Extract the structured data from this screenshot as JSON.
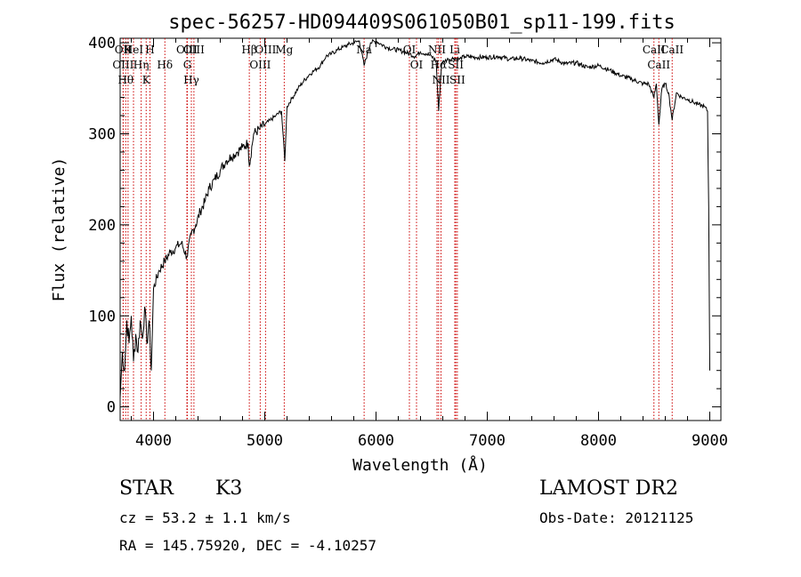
{
  "chart_data": {
    "type": "line",
    "title": "spec-56257-HD094409S061050B01_sp11-199.fits",
    "xlabel": "Wavelength (Å)",
    "ylabel": "Flux (relative)",
    "xlim": [
      3700,
      9100
    ],
    "ylim": [
      -15,
      405
    ],
    "x_ticks": [
      4000,
      5000,
      6000,
      7000,
      8000,
      9000
    ],
    "y_ticks": [
      0,
      100,
      200,
      300,
      400
    ],
    "grid": false,
    "series": [
      {
        "color": "#000000",
        "x": [
          3700,
          3720,
          3740,
          3760,
          3780,
          3800,
          3820,
          3840,
          3860,
          3880,
          3900,
          3920,
          3940,
          3960,
          3980,
          4000,
          4050,
          4100,
          4150,
          4200,
          4250,
          4300,
          4340,
          4380,
          4420,
          4460,
          4500,
          4550,
          4600,
          4650,
          4700,
          4750,
          4800,
          4850,
          4861,
          4900,
          4950,
          5000,
          5050,
          5100,
          5150,
          5180,
          5200,
          5250,
          5300,
          5350,
          5400,
          5450,
          5500,
          5550,
          5600,
          5650,
          5700,
          5750,
          5800,
          5850,
          5893,
          5950,
          6000,
          6050,
          6100,
          6150,
          6200,
          6250,
          6300,
          6350,
          6400,
          6450,
          6500,
          6540,
          6563,
          6590,
          6620,
          6650,
          6700,
          6750,
          6800,
          6900,
          7000,
          7100,
          7200,
          7300,
          7400,
          7500,
          7600,
          7700,
          7800,
          7900,
          8000,
          8100,
          8200,
          8300,
          8400,
          8450,
          8498,
          8520,
          8542,
          8570,
          8600,
          8630,
          8662,
          8700,
          8750,
          8800,
          8850,
          8900,
          8950,
          8980,
          8990,
          9000
        ],
        "y": [
          10,
          60,
          40,
          95,
          70,
          100,
          50,
          80,
          60,
          95,
          75,
          110,
          70,
          95,
          40,
          130,
          150,
          160,
          170,
          175,
          180,
          165,
          190,
          200,
          215,
          225,
          240,
          250,
          260,
          270,
          275,
          280,
          285,
          290,
          265,
          300,
          305,
          310,
          315,
          320,
          325,
          270,
          330,
          340,
          350,
          358,
          365,
          370,
          375,
          385,
          388,
          392,
          395,
          398,
          400,
          402,
          375,
          400,
          402,
          398,
          395,
          393,
          392,
          390,
          388,
          385,
          390,
          388,
          385,
          380,
          325,
          378,
          380,
          382,
          383,
          382,
          385,
          384,
          384,
          385,
          382,
          383,
          380,
          378,
          382,
          377,
          378,
          373,
          375,
          370,
          364,
          360,
          355,
          355,
          340,
          355,
          310,
          350,
          355,
          345,
          315,
          345,
          340,
          338,
          335,
          332,
          330,
          325,
          220,
          40
        ]
      }
    ],
    "line_annotations": [
      {
        "wavelength": 3750,
        "label": "Hθ"
      },
      {
        "wavelength": 3771,
        "label": "K"
      },
      {
        "wavelength": 3727,
        "label": "OII"
      },
      {
        "wavelength": 3820,
        "label": "HeI"
      },
      {
        "wavelength": 3727,
        "label": "OIII"
      },
      {
        "wavelength": 3889,
        "label": "Hη"
      },
      {
        "wavelength": 3934,
        "label": "K"
      },
      {
        "wavelength": 3968,
        "label": "H"
      },
      {
        "wavelength": 4102,
        "label": "Hδ"
      },
      {
        "wavelength": 4304,
        "label": "G"
      },
      {
        "wavelength": 4300,
        "label": "OIII"
      },
      {
        "wavelength": 4340,
        "label": "Hγ"
      },
      {
        "wavelength": 4363,
        "label": "OIII"
      },
      {
        "wavelength": 4861,
        "label": "Hβ"
      },
      {
        "wavelength": 4959,
        "label": "OIII"
      },
      {
        "wavelength": 5007,
        "label": "OIII"
      },
      {
        "wavelength": 5175,
        "label": "Mg"
      },
      {
        "wavelength": 5893,
        "label": "Na"
      },
      {
        "wavelength": 6300,
        "label": "OI"
      },
      {
        "wavelength": 6364,
        "label": "OI"
      },
      {
        "wavelength": 6548,
        "label": "NII"
      },
      {
        "wavelength": 6563,
        "label": "Hα"
      },
      {
        "wavelength": 6584,
        "label": "NII"
      },
      {
        "wavelength": 6708,
        "label": "Li"
      },
      {
        "wavelength": 6717,
        "label": "SII"
      },
      {
        "wavelength": 6731,
        "label": "SII"
      },
      {
        "wavelength": 8498,
        "label": "CaII"
      },
      {
        "wavelength": 8542,
        "label": "CaII"
      },
      {
        "wavelength": 8662,
        "label": "CaII"
      }
    ]
  },
  "info": {
    "object_type": "STAR",
    "subclass": "K3",
    "survey": "LAMOST DR2",
    "cz": "cz = 53.2 ± 1.1 km/s",
    "obs_date": "Obs-Date: 20121125",
    "radec": "RA = 145.75920, DEC =  -4.10257"
  }
}
